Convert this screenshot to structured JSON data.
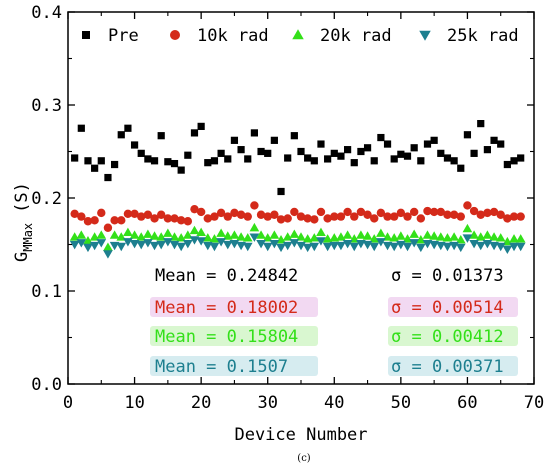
{
  "caption": "(c)",
  "chart_data": {
    "type": "scatter",
    "xlabel": "Device Number",
    "ylabel_main": "G",
    "ylabel_sub": "MMax",
    "ylabel_unit": "(S)",
    "xlim": [
      0,
      70
    ],
    "ylim": [
      0.0,
      0.4
    ],
    "x_ticks": [
      0,
      10,
      20,
      30,
      40,
      50,
      60,
      70
    ],
    "y_ticks": [
      0.0,
      0.1,
      0.2,
      0.3,
      0.4
    ],
    "x_tick_labels": [
      "0",
      "10",
      "20",
      "30",
      "40",
      "50",
      "60",
      "70"
    ],
    "y_tick_labels": [
      "0.0",
      "0.1",
      "0.2",
      "0.3",
      "0.4"
    ],
    "x": [
      1,
      2,
      3,
      4,
      5,
      6,
      7,
      8,
      9,
      10,
      11,
      12,
      13,
      14,
      15,
      16,
      17,
      18,
      19,
      20,
      21,
      22,
      23,
      24,
      25,
      26,
      27,
      28,
      29,
      30,
      31,
      32,
      33,
      34,
      35,
      36,
      37,
      38,
      39,
      40,
      41,
      42,
      43,
      44,
      45,
      46,
      47,
      48,
      49,
      50,
      51,
      52,
      53,
      54,
      55,
      56,
      57,
      58,
      59,
      60,
      61,
      62,
      63,
      64,
      65,
      66,
      67,
      68
    ],
    "series": [
      {
        "name": "Pre",
        "marker": "square",
        "color": "#000000",
        "values": [
          0.243,
          0.275,
          0.24,
          0.232,
          0.24,
          0.222,
          0.236,
          0.268,
          0.275,
          0.257,
          0.248,
          0.242,
          0.24,
          0.267,
          0.239,
          0.237,
          0.23,
          0.246,
          0.27,
          0.277,
          0.238,
          0.24,
          0.248,
          0.242,
          0.262,
          0.252,
          0.242,
          0.27,
          0.25,
          0.248,
          0.262,
          0.207,
          0.243,
          0.267,
          0.25,
          0.243,
          0.24,
          0.258,
          0.242,
          0.248,
          0.245,
          0.252,
          0.238,
          0.25,
          0.254,
          0.24,
          0.265,
          0.258,
          0.242,
          0.247,
          0.245,
          0.254,
          0.24,
          0.258,
          0.262,
          0.248,
          0.243,
          0.24,
          0.232,
          0.268,
          0.248,
          0.28,
          0.252,
          0.262,
          0.258,
          0.236,
          0.24,
          0.243
        ]
      },
      {
        "name": "10k rad",
        "marker": "circle",
        "color": "#d42a1a",
        "values": [
          0.183,
          0.18,
          0.175,
          0.176,
          0.184,
          0.168,
          0.176,
          0.176,
          0.183,
          0.183,
          0.18,
          0.182,
          0.178,
          0.182,
          0.178,
          0.178,
          0.176,
          0.175,
          0.188,
          0.185,
          0.178,
          0.18,
          0.184,
          0.18,
          0.184,
          0.182,
          0.18,
          0.192,
          0.182,
          0.18,
          0.182,
          0.177,
          0.178,
          0.185,
          0.18,
          0.178,
          0.177,
          0.185,
          0.178,
          0.18,
          0.18,
          0.185,
          0.18,
          0.185,
          0.182,
          0.178,
          0.184,
          0.18,
          0.18,
          0.184,
          0.18,
          0.185,
          0.178,
          0.186,
          0.185,
          0.185,
          0.182,
          0.182,
          0.18,
          0.192,
          0.186,
          0.182,
          0.184,
          0.185,
          0.182,
          0.178,
          0.18,
          0.18
        ]
      },
      {
        "name": "20k rad",
        "marker": "triangle-up",
        "color": "#33e019",
        "values": [
          0.158,
          0.16,
          0.154,
          0.158,
          0.16,
          0.147,
          0.16,
          0.158,
          0.163,
          0.16,
          0.158,
          0.161,
          0.159,
          0.158,
          0.162,
          0.158,
          0.157,
          0.16,
          0.165,
          0.163,
          0.157,
          0.156,
          0.162,
          0.159,
          0.16,
          0.158,
          0.157,
          0.168,
          0.16,
          0.157,
          0.16,
          0.155,
          0.158,
          0.161,
          0.158,
          0.156,
          0.157,
          0.163,
          0.156,
          0.157,
          0.158,
          0.16,
          0.156,
          0.16,
          0.159,
          0.156,
          0.162,
          0.158,
          0.157,
          0.159,
          0.156,
          0.161,
          0.155,
          0.16,
          0.159,
          0.158,
          0.157,
          0.158,
          0.155,
          0.167,
          0.16,
          0.158,
          0.16,
          0.158,
          0.157,
          0.153,
          0.156,
          0.156
        ]
      },
      {
        "name": "25k rad",
        "marker": "triangle-down",
        "color": "#1d7f8f",
        "values": [
          0.15,
          0.152,
          0.147,
          0.149,
          0.152,
          0.14,
          0.149,
          0.148,
          0.153,
          0.151,
          0.15,
          0.152,
          0.149,
          0.15,
          0.153,
          0.15,
          0.148,
          0.151,
          0.155,
          0.154,
          0.149,
          0.148,
          0.153,
          0.15,
          0.151,
          0.149,
          0.148,
          0.158,
          0.151,
          0.148,
          0.151,
          0.147,
          0.149,
          0.152,
          0.149,
          0.147,
          0.148,
          0.154,
          0.148,
          0.149,
          0.149,
          0.151,
          0.148,
          0.151,
          0.15,
          0.148,
          0.153,
          0.149,
          0.148,
          0.15,
          0.148,
          0.152,
          0.147,
          0.151,
          0.15,
          0.149,
          0.148,
          0.149,
          0.147,
          0.157,
          0.151,
          0.149,
          0.151,
          0.149,
          0.148,
          0.145,
          0.148,
          0.148
        ]
      }
    ],
    "legend": [
      {
        "label": "Pre",
        "marker": "square",
        "color": "#000000"
      },
      {
        "label": "10k rad",
        "marker": "circle",
        "color": "#d42a1a"
      },
      {
        "label": "20k rad",
        "marker": "triangle-up",
        "color": "#33e019"
      },
      {
        "label": "25k rad",
        "marker": "triangle-down",
        "color": "#1d7f8f"
      }
    ],
    "legend_position": "top",
    "annotations": [
      {
        "mean": "Mean = 0.24842",
        "sigma": "σ = 0.01373",
        "color": "#000000",
        "highlight": ""
      },
      {
        "mean": "Mean = 0.18002",
        "sigma": "σ = 0.00514",
        "color": "#d42a1a",
        "highlight": "#f2d9f2"
      },
      {
        "mean": "Mean = 0.15804",
        "sigma": "σ = 0.00412",
        "color": "#33e019",
        "highlight": "#d9f7d0"
      },
      {
        "mean": "Mean = 0.1507",
        "sigma": "σ = 0.00371",
        "color": "#1d7f8f",
        "highlight": "#d6ecf0"
      }
    ],
    "grid": false
  }
}
